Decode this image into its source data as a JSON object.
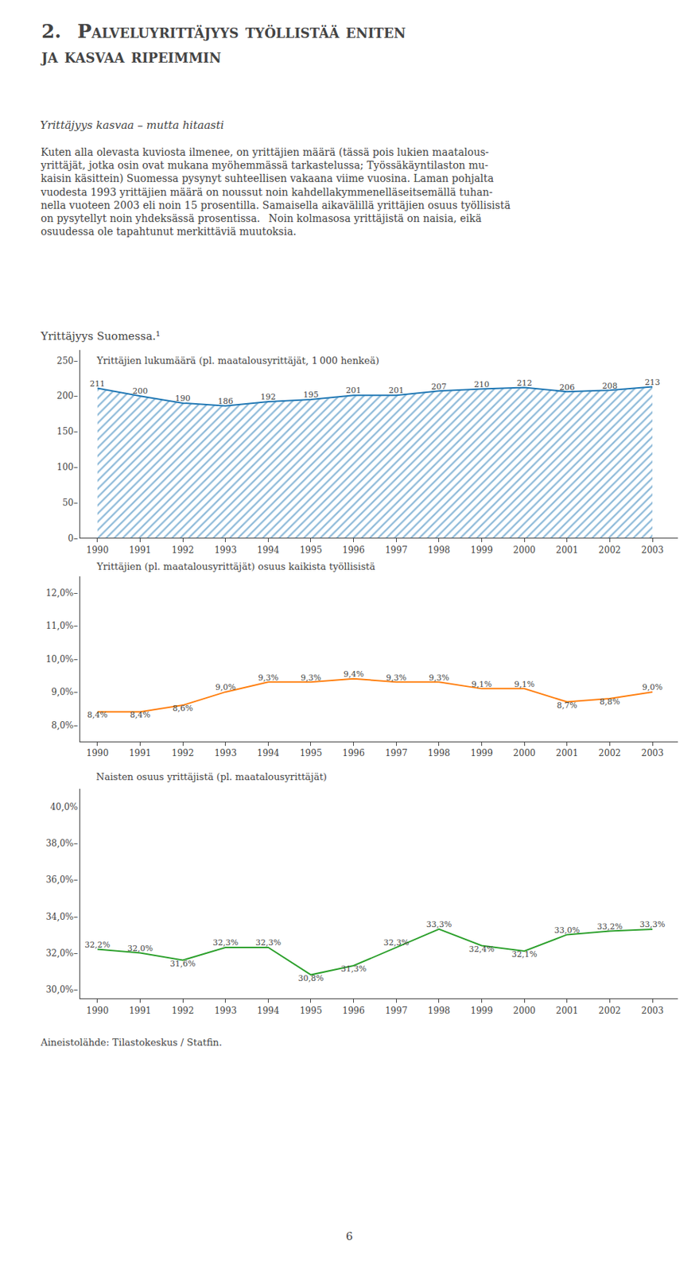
{
  "title": "2.  Palveluyrittäjyys työllistää eniten\nja kasvaa ripeimmin",
  "subtitle": "Yrittäjyys kasvaa – mutta hitaasti",
  "annotations": [
    "Kuten alla olevasta kuviosta ilmenee, on yrittäjien määrä (tässä pois lukien maatalous-\nyrittäjät, jotka osin ovat mukana myöhemmässä tarkastelussa; Työssäkäyntilaston mu-\nkaisin käsittein) Suomessa pysynyt suhteellisen vakaana viime vuosina. Laman pohjalta\nvuodesta 1993 yrittäjien määrä on noussut noin kahdellakymmenelläseitsemällä tuhan-\nnella vuoteen 2003 eli noin 15 prosentilla. Samaisella aikavälillä yrittäjien osuus työllisistä\non pysytellyt noin yhdeksässä prosentissa.  Noin kolmasosa yrittäjistä on naisia, eikä\nosuudessa ole tapahtunut merkittäviä muutoksia.",
    "Yrittäjyys Suomessa.¹",
    "Aineistolähde: Tilastokeskus / Statfin.",
    "6"
  ],
  "chart_data": [
    {
      "type": "area",
      "title": "Yrittäjien lukumäärä (pl. maatalousyrittäjät, 1 000 henkeä)",
      "x": [
        1990,
        1991,
        1992,
        1993,
        1994,
        1995,
        1996,
        1997,
        1998,
        1999,
        2000,
        2001,
        2002,
        2003
      ],
      "values": [
        211,
        200,
        190,
        186,
        192,
        195,
        201,
        201,
        207,
        210,
        212,
        206,
        208,
        213
      ],
      "xlim": [
        1989.6,
        2003.6
      ],
      "xticks": [
        1990,
        1991,
        1992,
        1993,
        1994,
        1995,
        1996,
        1997,
        1998,
        1999,
        2000,
        2001,
        2002,
        2003
      ],
      "ylim": [
        0,
        265
      ],
      "yticks": [
        {
          "value": 0,
          "label": "0–"
        },
        {
          "value": 50,
          "label": "50–"
        },
        {
          "value": 100,
          "label": "100–"
        },
        {
          "value": 150,
          "label": "150–"
        },
        {
          "value": 200,
          "label": "200–"
        },
        {
          "value": 250,
          "label": "250–"
        }
      ],
      "data_labels": true,
      "grid": false
    },
    {
      "type": "line",
      "title": "Yrittäjien (pl. maatalousyrittäjät) osuus kaikista työllisistä",
      "x": [
        1990,
        1991,
        1992,
        1993,
        1994,
        1995,
        1996,
        1997,
        1998,
        1999,
        2000,
        2001,
        2002,
        2003
      ],
      "values": [
        8.4,
        8.4,
        8.6,
        9.0,
        9.3,
        9.3,
        9.4,
        9.3,
        9.3,
        9.1,
        9.1,
        8.7,
        8.8,
        9.0
      ],
      "value_labels": [
        "8,4%",
        "8,4%",
        "8,6%",
        "9,0%",
        "9,3%",
        "9,3%",
        "9,4%",
        "9,3%",
        "9,3%",
        "9,1%",
        "9,1%",
        "8,7%",
        "8,8%",
        "9,0%"
      ],
      "xlim": [
        1989.6,
        2003.6
      ],
      "xticks": [
        1990,
        1991,
        1992,
        1993,
        1994,
        1995,
        1996,
        1997,
        1998,
        1999,
        2000,
        2001,
        2002,
        2003
      ],
      "ylim": [
        7.5,
        12.5
      ],
      "yticks": [
        {
          "value": 8.0,
          "label": "8,0%–"
        },
        {
          "value": 9.0,
          "label": "9,0%–"
        },
        {
          "value": 10.0,
          "label": "10,0%–"
        },
        {
          "value": 11.0,
          "label": "11,0%–"
        },
        {
          "value": 12.0,
          "label": "12,0%–"
        }
      ],
      "data_labels": true,
      "grid": false
    },
    {
      "type": "line",
      "title": "Naisten osuus yrittäjistä (pl. maatalousyrittäjät)",
      "x": [
        1990,
        1991,
        1992,
        1993,
        1994,
        1995,
        1996,
        1997,
        1998,
        1999,
        2000,
        2001,
        2002,
        2003
      ],
      "values": [
        32.2,
        32.0,
        31.6,
        32.3,
        32.3,
        30.8,
        31.3,
        32.3,
        33.3,
        32.4,
        32.1,
        33.0,
        33.2,
        33.3
      ],
      "value_labels": [
        "32,2%",
        "32,0%",
        "31,6%",
        "32,3%",
        "32,3%",
        "30,8%",
        "31,3%",
        "32,3%",
        "33,3%",
        "32,4%",
        "32,1%",
        "33,0%",
        "33,2%",
        "33,3%"
      ],
      "xlim": [
        1989.6,
        2003.6
      ],
      "xticks": [
        1990,
        1991,
        1992,
        1993,
        1994,
        1995,
        1996,
        1997,
        1998,
        1999,
        2000,
        2001,
        2002,
        2003
      ],
      "ylim": [
        29.5,
        41.0
      ],
      "yticks": [
        {
          "value": 30.0,
          "label": "30,0%–"
        },
        {
          "value": 32.0,
          "label": "32,0%–"
        },
        {
          "value": 34.0,
          "label": "34,0%–"
        },
        {
          "value": 36.0,
          "label": "36,0%–"
        },
        {
          "value": 38.0,
          "label": "38,0%–"
        },
        {
          "value": 40.0,
          "label": "40,0%"
        }
      ],
      "data_labels": true,
      "grid": false
    }
  ]
}
